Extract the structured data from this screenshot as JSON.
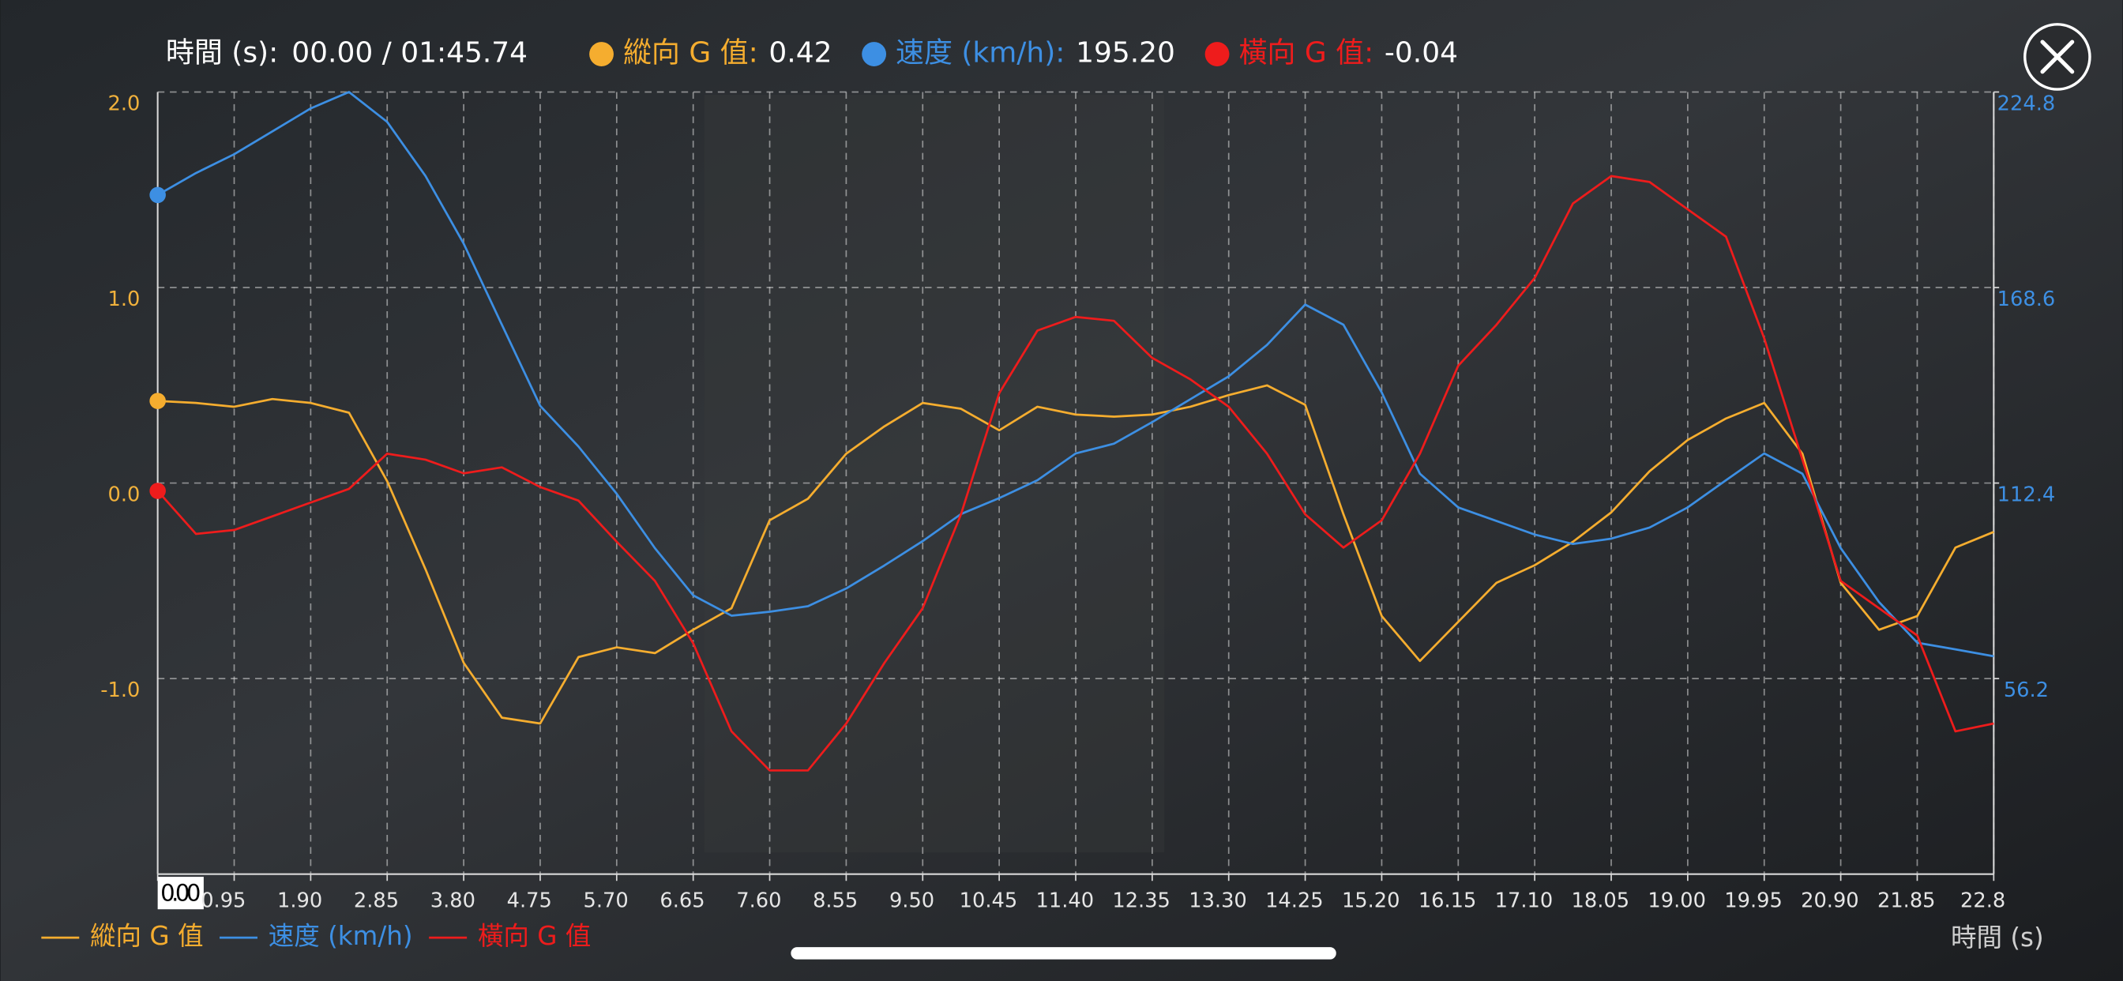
{
  "header": {
    "time_label": "時間 (s):",
    "time_value": "00.00 / 01:45.74",
    "readouts": [
      {
        "label": "縱向 G 值:",
        "value": 0.42,
        "color": "#f5ad2f"
      },
      {
        "label": "速度 (km/h):",
        "value": "195.20",
        "color": "#3d8fe3"
      },
      {
        "label": "橫向 G 值:",
        "value": -0.04,
        "color": "#ee1c1c"
      }
    ]
  },
  "chart_data": {
    "type": "line",
    "x_label": "時間 (s)",
    "legend": "bottom-left",
    "grid": true,
    "x": [
      0,
      0.475,
      0.95,
      1.425,
      1.9,
      2.375,
      2.85,
      3.325,
      3.8,
      4.275,
      4.75,
      5.225,
      5.7,
      6.175,
      6.65,
      7.125,
      7.6,
      8.075,
      8.55,
      9.025,
      9.5,
      9.975,
      10.45,
      10.925,
      11.4,
      11.875,
      12.35,
      12.825,
      13.3,
      13.775,
      14.25,
      14.725,
      15.2,
      15.675,
      16.15,
      16.625,
      17.1,
      17.575,
      18.05,
      18.525,
      19,
      19.475,
      19.95,
      20.425,
      20.9,
      21.375,
      21.85,
      22.325,
      22.8
    ],
    "xlim": [
      0,
      22.8
    ],
    "xticks": [
      {
        "value": 0,
        "label": "0.00"
      },
      {
        "value": 0.95,
        "label": "0.95"
      },
      {
        "value": 1.9,
        "label": "1.90"
      },
      {
        "value": 2.85,
        "label": "2.85"
      },
      {
        "value": 3.8,
        "label": "3.80"
      },
      {
        "value": 4.75,
        "label": "4.75"
      },
      {
        "value": 5.7,
        "label": "5.70"
      },
      {
        "value": 6.65,
        "label": "6.65"
      },
      {
        "value": 7.6,
        "label": "7.60"
      },
      {
        "value": 8.55,
        "label": "8.55"
      },
      {
        "value": 9.5,
        "label": "9.50"
      },
      {
        "value": 10.45,
        "label": "10.45"
      },
      {
        "value": 11.4,
        "label": "11.40"
      },
      {
        "value": 12.35,
        "label": "12.35"
      },
      {
        "value": 13.3,
        "label": "13.30"
      },
      {
        "value": 14.25,
        "label": "14.25"
      },
      {
        "value": 15.2,
        "label": "15.20"
      },
      {
        "value": 16.15,
        "label": "16.15"
      },
      {
        "value": 17.1,
        "label": "17.10"
      },
      {
        "value": 18.05,
        "label": "18.05"
      },
      {
        "value": 19,
        "label": "19.00"
      },
      {
        "value": 19.95,
        "label": "19.95"
      },
      {
        "value": 20.9,
        "label": "20.90"
      },
      {
        "value": 21.85,
        "label": "21.85"
      },
      {
        "value": 22.8,
        "label": "22.8"
      }
    ],
    "ylim": [
      -2,
      2
    ],
    "yticks": [
      {
        "value": -1,
        "label": "-1.0"
      },
      {
        "value": 0,
        "label": "0.0"
      },
      {
        "value": 1,
        "label": "1.0"
      },
      {
        "value": 2,
        "label": "2.0"
      }
    ],
    "y2lim": [
      0,
      224.8
    ],
    "y2ticks": [
      56.2,
      112.4,
      168.6,
      224.8
    ],
    "series": [
      {
        "name": "縱向 G 值",
        "color": "#f5ad2f",
        "values": [
          0.42,
          0.41,
          0.39,
          0.43,
          0.41,
          0.36,
          0.01,
          -0.44,
          -0.92,
          -1.2,
          -1.23,
          -0.89,
          -0.84,
          -0.87,
          -0.75,
          -0.64,
          -0.19,
          -0.08,
          0.15,
          0.29,
          0.41,
          0.38,
          0.27,
          0.39,
          0.35,
          0.34,
          0.35,
          0.39,
          0.45,
          0.5,
          0.4,
          -0.16,
          -0.68,
          -0.91,
          -0.71,
          -0.51,
          -0.42,
          -0.3,
          -0.15,
          0.06,
          0.22,
          0.33,
          0.41,
          0.15,
          -0.51,
          -0.75,
          -0.68,
          -0.33,
          -0.25
        ]
      },
      {
        "name": "速度 (km/h)",
        "color": "#3d8fe3",
        "axis": "y2",
        "values": [
          195.2,
          201.5,
          206.9,
          213.5,
          220.1,
          224.8,
          216.2,
          200.7,
          181.2,
          157.9,
          134.6,
          122.9,
          109.3,
          93.7,
          80.1,
          74.3,
          75.4,
          77.0,
          82.1,
          88.7,
          95.7,
          103.5,
          108.1,
          113.2,
          120.9,
          123.7,
          129.9,
          136.5,
          143.1,
          152.1,
          163.7,
          157.9,
          138.4,
          115.1,
          105.4,
          101.5,
          97.6,
          94.9,
          96.4,
          99.6,
          105.4,
          113.2,
          120.9,
          115.1,
          93.7,
          78.2,
          66.5,
          64.6,
          62.6
        ]
      },
      {
        "name": "橫向 G 值",
        "color": "#ee1c1c",
        "values": [
          -0.04,
          -0.26,
          -0.24,
          -0.17,
          -0.1,
          -0.03,
          0.15,
          0.12,
          0.05,
          0.08,
          -0.02,
          -0.09,
          -0.3,
          -0.5,
          -0.82,
          -1.27,
          -1.47,
          -1.47,
          -1.23,
          -0.92,
          -0.64,
          -0.16,
          0.46,
          0.78,
          0.85,
          0.83,
          0.64,
          0.53,
          0.39,
          0.15,
          -0.16,
          -0.33,
          -0.19,
          0.15,
          0.6,
          0.81,
          1.05,
          1.43,
          1.57,
          1.54,
          1.4,
          1.26,
          0.74,
          0.12,
          -0.5,
          -0.64,
          -0.78,
          -1.27,
          -1.23
        ]
      }
    ]
  }
}
